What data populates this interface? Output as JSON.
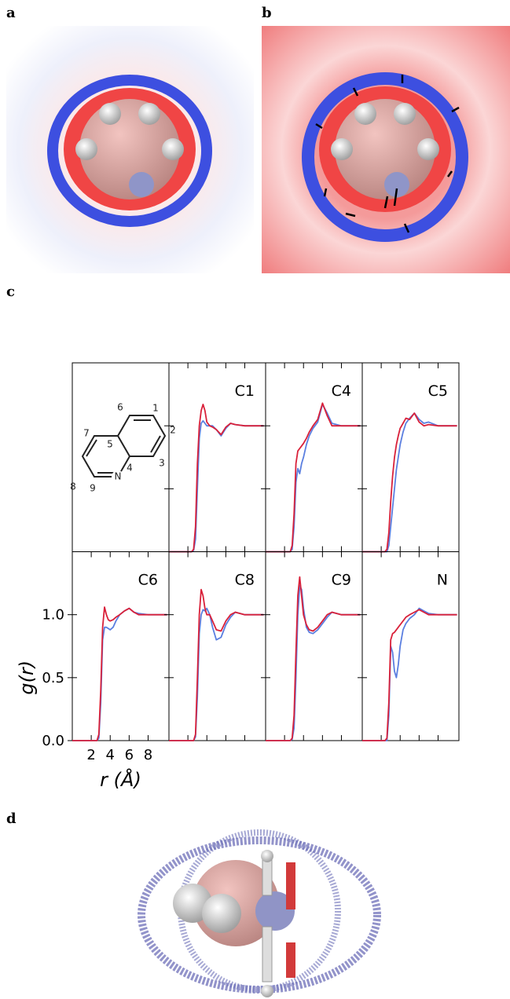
{
  "panel_labels": [
    "a",
    "b",
    "c",
    "d"
  ],
  "structure": {
    "atom_labels": [
      "1",
      "2",
      "3",
      "4",
      "5",
      "6",
      "7",
      "8",
      "9",
      "N"
    ]
  },
  "chart_data": {
    "type": "line",
    "xlabel": "r (Å)",
    "ylabel": "g(r)",
    "xlim": [
      0,
      10.2
    ],
    "ylim": [
      0,
      1.5
    ],
    "xticks": [
      2,
      4,
      6,
      8
    ],
    "yticks": [
      {
        "value": 0,
        "label": "0.0"
      },
      0.5,
      {
        "value": 1,
        "label": "1.0"
      }
    ],
    "x": [
      0,
      2.4,
      2.6,
      2.8,
      3.0,
      3.2,
      3.4,
      3.6,
      3.8,
      4.0,
      4.3,
      4.6,
      5.0,
      5.5,
      6.0,
      6.5,
      7.0,
      8.0,
      9.0,
      10.0
    ],
    "panels": [
      {
        "title": "C1",
        "series": [
          {
            "color": "#5b7fe0",
            "values": [
              0,
              0,
              0.01,
              0.1,
              0.5,
              0.9,
              1.02,
              1.04,
              1.02,
              1.0,
              1.0,
              1.0,
              0.97,
              0.92,
              0.98,
              1.02,
              1.01,
              1.0,
              1.0,
              1.0
            ]
          },
          {
            "color": "#d9213a",
            "values": [
              0,
              0,
              0.02,
              0.2,
              0.7,
              1.0,
              1.12,
              1.17,
              1.12,
              1.03,
              1.0,
              0.99,
              0.97,
              0.93,
              0.99,
              1.02,
              1.01,
              1.0,
              1.0,
              1.0
            ]
          }
        ]
      },
      {
        "title": "C4",
        "series": [
          {
            "color": "#5b7fe0",
            "values": [
              0,
              0,
              0,
              0.02,
              0.2,
              0.55,
              0.66,
              0.62,
              0.7,
              0.75,
              0.85,
              0.92,
              0.98,
              1.03,
              1.17,
              1.1,
              1.02,
              1.0,
              1.0,
              1.0
            ]
          },
          {
            "color": "#d9213a",
            "values": [
              0,
              0,
              0,
              0.05,
              0.3,
              0.7,
              0.8,
              0.82,
              0.84,
              0.86,
              0.9,
              0.95,
              1.0,
              1.05,
              1.18,
              1.08,
              1.0,
              1.0,
              1.0,
              1.0
            ]
          }
        ]
      },
      {
        "title": "C5",
        "series": [
          {
            "color": "#5b7fe0",
            "values": [
              0,
              0,
              0,
              0.05,
              0.2,
              0.35,
              0.5,
              0.65,
              0.75,
              0.85,
              0.95,
              1.02,
              1.06,
              1.1,
              1.05,
              1.02,
              1.03,
              1.0,
              1.0,
              1.0
            ]
          },
          {
            "color": "#d9213a",
            "values": [
              0,
              0,
              0.02,
              0.15,
              0.4,
              0.6,
              0.75,
              0.85,
              0.92,
              0.98,
              1.02,
              1.06,
              1.05,
              1.1,
              1.03,
              1.0,
              1.01,
              1.0,
              1.0,
              1.0
            ]
          }
        ]
      },
      {
        "title": "C6",
        "series": [
          {
            "color": "#5b7fe0",
            "values": [
              0,
              0,
              0,
              0.02,
              0.3,
              0.8,
              0.9,
              0.9,
              0.89,
              0.88,
              0.9,
              0.95,
              1.0,
              1.03,
              1.05,
              1.02,
              1.01,
              1.0,
              1.0,
              1.0
            ]
          },
          {
            "color": "#d9213a",
            "values": [
              0,
              0,
              0,
              0.05,
              0.4,
              0.9,
              1.06,
              1.0,
              0.96,
              0.95,
              0.96,
              0.98,
              1.0,
              1.03,
              1.05,
              1.02,
              1.0,
              1.0,
              1.0,
              1.0
            ]
          }
        ]
      },
      {
        "title": "C8",
        "series": [
          {
            "color": "#5b7fe0",
            "values": [
              0,
              0,
              0,
              0.03,
              0.35,
              0.85,
              1.0,
              1.04,
              1.03,
              1.05,
              1.0,
              0.9,
              0.8,
              0.82,
              0.92,
              0.98,
              1.02,
              1.0,
              1.0,
              1.0
            ]
          },
          {
            "color": "#d9213a",
            "values": [
              0,
              0,
              0,
              0.05,
              0.5,
              1.0,
              1.2,
              1.15,
              1.05,
              1.0,
              1.0,
              0.95,
              0.88,
              0.87,
              0.95,
              1.0,
              1.02,
              1.0,
              1.0,
              1.0
            ]
          }
        ]
      },
      {
        "title": "C9",
        "series": [
          {
            "color": "#5b7fe0",
            "values": [
              0,
              0,
              0,
              0.01,
              0.1,
              0.5,
              1.0,
              1.23,
              1.2,
              1.05,
              0.9,
              0.86,
              0.85,
              0.88,
              0.93,
              0.98,
              1.02,
              1.0,
              1.0,
              1.0
            ]
          },
          {
            "color": "#d9213a",
            "values": [
              0,
              0,
              0,
              0.02,
              0.2,
              0.7,
              1.15,
              1.3,
              1.15,
              1.0,
              0.92,
              0.88,
              0.87,
              0.9,
              0.95,
              1.0,
              1.02,
              1.0,
              1.0,
              1.0
            ]
          }
        ]
      },
      {
        "title": "N",
        "series": [
          {
            "color": "#5b7fe0",
            "values": [
              0,
              0,
              0,
              0.2,
              0.75,
              0.7,
              0.55,
              0.5,
              0.6,
              0.75,
              0.88,
              0.93,
              0.97,
              1.0,
              1.05,
              1.03,
              1.01,
              1.0,
              1.0,
              1.0
            ]
          },
          {
            "color": "#d9213a",
            "values": [
              0,
              0,
              0.02,
              0.3,
              0.8,
              0.85,
              0.86,
              0.88,
              0.9,
              0.92,
              0.95,
              0.98,
              1.0,
              1.02,
              1.04,
              1.02,
              1.0,
              1.0,
              1.0,
              1.0
            ]
          }
        ]
      }
    ]
  }
}
